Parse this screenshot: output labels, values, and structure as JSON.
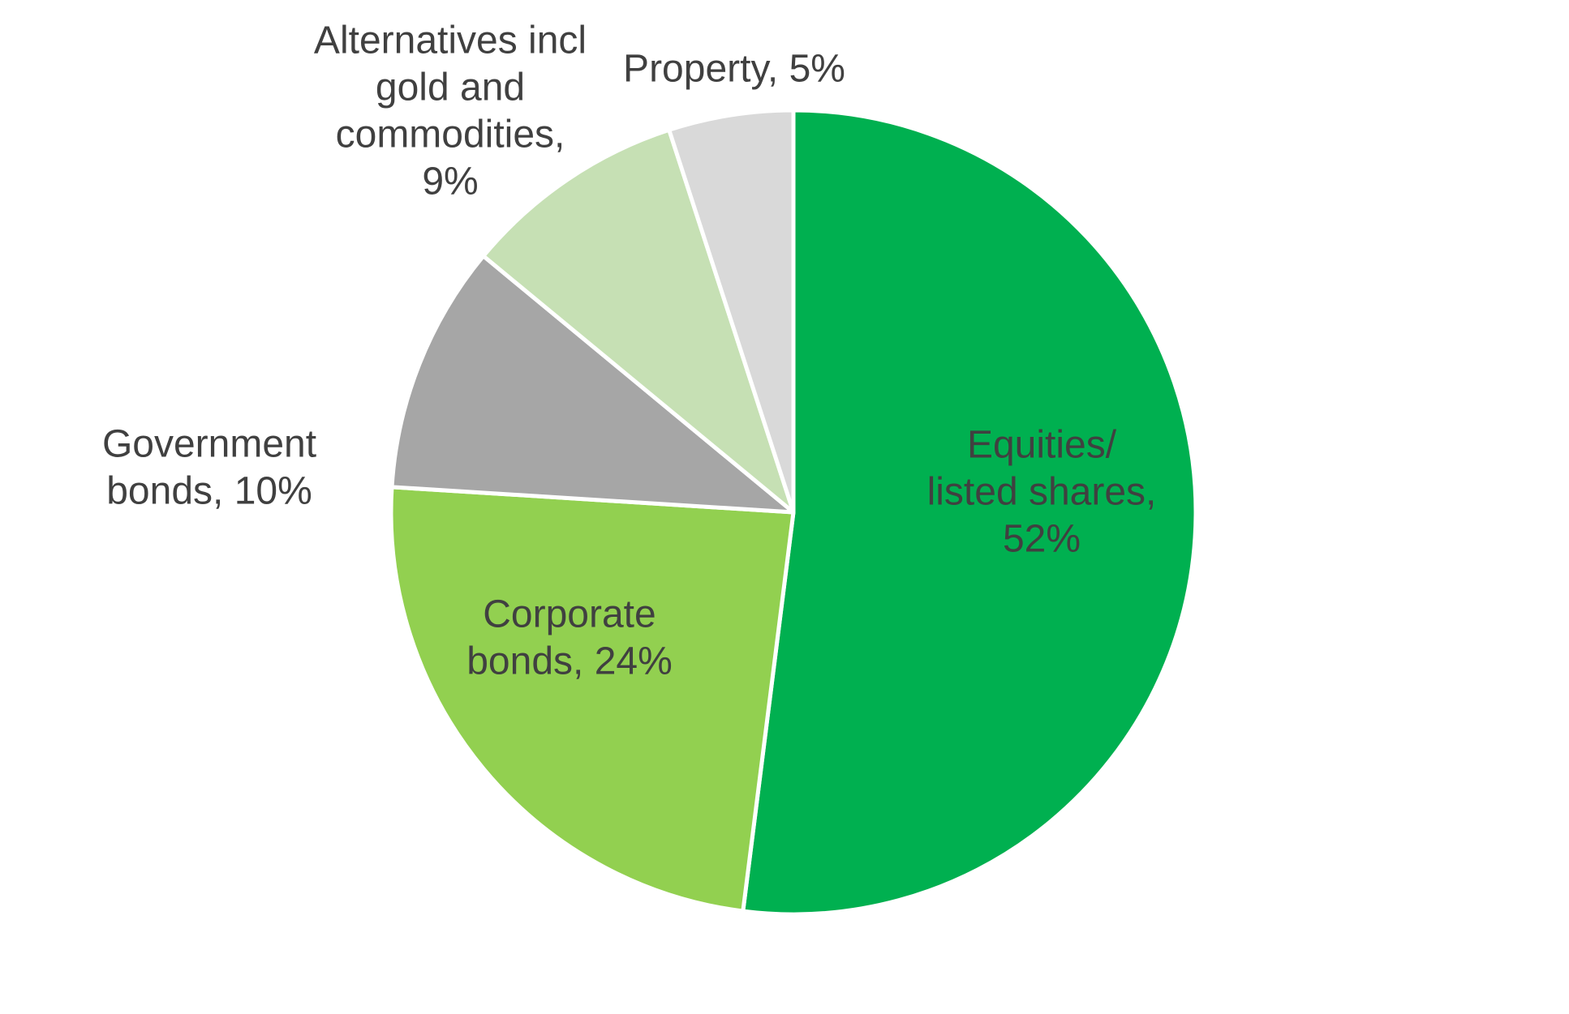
{
  "chart_data": {
    "type": "pie",
    "title": "",
    "start_angle_deg": 0,
    "direction": "clockwise",
    "slices": [
      {
        "name": "Equities/ listed shares",
        "value": 52,
        "label_lines": [
          "Equities/",
          "listed shares,",
          "52%"
        ],
        "color": "#00B050",
        "label_position": "inside",
        "label_color": "#FFFFFF"
      },
      {
        "name": "Corporate bonds",
        "value": 24,
        "label_lines": [
          "Corporate",
          "bonds, 24%"
        ],
        "color": "#92D050",
        "label_position": "inside",
        "label_color": "#404040"
      },
      {
        "name": "Government bonds",
        "value": 10,
        "label_lines": [
          "Government",
          "bonds, 10%"
        ],
        "color": "#A6A6A6",
        "label_position": "outside",
        "label_color": "#404040"
      },
      {
        "name": "Alternatives incl gold and commodities",
        "value": 9,
        "label_lines": [
          "Alternatives incl",
          "gold and",
          "commodities,",
          "9%"
        ],
        "color": "#C6E0B4",
        "label_position": "outside",
        "label_color": "#404040"
      },
      {
        "name": "Property",
        "value": 5,
        "label_lines": [
          "Property, 5%"
        ],
        "color": "#D9D9D9",
        "label_position": "outside",
        "label_color": "#404040"
      }
    ]
  }
}
